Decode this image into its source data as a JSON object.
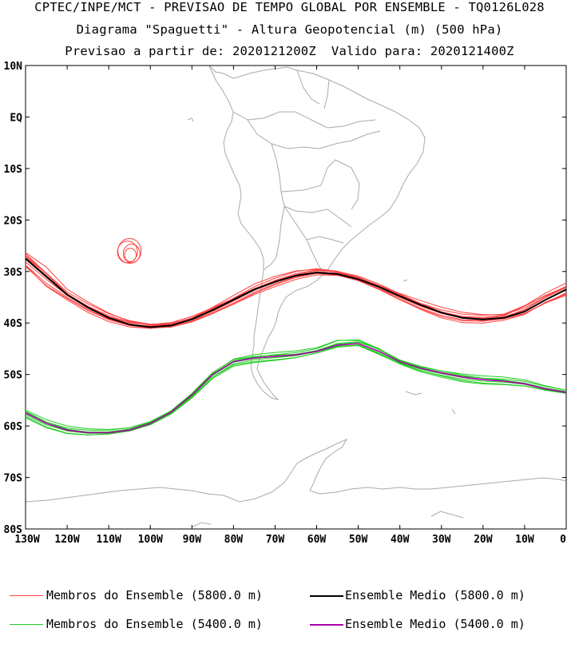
{
  "titles": {
    "line1": "CPTEC/INPE/MCT - PREVISAO DE TEMPO GLOBAL POR ENSEMBLE - TQ0126L028",
    "line2": "Diagrama \"Spaguetti\" - Altura Geopotencial (m) (500 hPa)",
    "line3": "Previsao a partir de: 2020121200Z  Valido para: 2020121400Z"
  },
  "axes": {
    "lat_labels": [
      "10N",
      "EQ",
      "10S",
      "20S",
      "30S",
      "40S",
      "50S",
      "60S",
      "70S",
      "80S"
    ],
    "lat_values": [
      10,
      0,
      -10,
      -20,
      -30,
      -40,
      -50,
      -60,
      -70,
      -80
    ],
    "lon_labels": [
      "130W",
      "120W",
      "110W",
      "100W",
      "90W",
      "80W",
      "70W",
      "60W",
      "50W",
      "40W",
      "30W",
      "20W",
      "10W",
      "0"
    ],
    "lon_values": [
      -130,
      -120,
      -110,
      -100,
      -90,
      -80,
      -70,
      -60,
      -50,
      -40,
      -30,
      -20,
      -10,
      0
    ],
    "lon_range": [
      -130,
      0
    ],
    "lat_range": [
      -80,
      10
    ]
  },
  "legend": {
    "members_5800": "Membros do Ensemble (5800.0 m)",
    "mean_5800": "Ensemble Medio (5800.0 m)",
    "members_5400": "Membros do Ensemble (5400.0 m)",
    "mean_5400": "Ensemble Medio (5400.0 m)"
  },
  "colors": {
    "members_5800": "#ff4040",
    "mean_5800": "#000000",
    "members_5400": "#22cc22",
    "mean_5400": "#aa00aa",
    "coast": "#aaaaaa"
  },
  "contours": {
    "mean_5800": [
      [
        -130,
        -27.5
      ],
      [
        -125,
        -31
      ],
      [
        -120,
        -34.5
      ],
      [
        -115,
        -37
      ],
      [
        -110,
        -39
      ],
      [
        -105,
        -40.3
      ],
      [
        -100,
        -40.8
      ],
      [
        -95,
        -40.5
      ],
      [
        -90,
        -39.3
      ],
      [
        -85,
        -37.5
      ],
      [
        -80,
        -35.5
      ],
      [
        -75,
        -33.5
      ],
      [
        -70,
        -32
      ],
      [
        -65,
        -30.8
      ],
      [
        -60,
        -30.2
      ],
      [
        -55,
        -30.5
      ],
      [
        -50,
        -31.5
      ],
      [
        -45,
        -33
      ],
      [
        -40,
        -34.8
      ],
      [
        -35,
        -36.5
      ],
      [
        -30,
        -38
      ],
      [
        -25,
        -39
      ],
      [
        -20,
        -39.3
      ],
      [
        -15,
        -39
      ],
      [
        -10,
        -37.8
      ],
      [
        -5,
        -35.5
      ],
      [
        0,
        -33.5
      ]
    ],
    "mean_5400": [
      [
        -130,
        -57.5
      ],
      [
        -125,
        -59.5
      ],
      [
        -120,
        -60.8
      ],
      [
        -115,
        -61.3
      ],
      [
        -110,
        -61.3
      ],
      [
        -105,
        -60.8
      ],
      [
        -100,
        -59.5
      ],
      [
        -95,
        -57.3
      ],
      [
        -90,
        -54
      ],
      [
        -85,
        -50
      ],
      [
        -80,
        -47.5
      ],
      [
        -75,
        -46.8
      ],
      [
        -70,
        -46.5
      ],
      [
        -65,
        -46.2
      ],
      [
        -60,
        -45.5
      ],
      [
        -55,
        -44.3
      ],
      [
        -50,
        -44
      ],
      [
        -45,
        -45.5
      ],
      [
        -40,
        -47.5
      ],
      [
        -35,
        -48.8
      ],
      [
        -30,
        -49.7
      ],
      [
        -25,
        -50.5
      ],
      [
        -20,
        -51
      ],
      [
        -15,
        -51.3
      ],
      [
        -10,
        -51.8
      ],
      [
        -5,
        -52.8
      ],
      [
        0,
        -53.5
      ]
    ],
    "member_offsets_5800": [
      -1.0,
      -0.6,
      -0.3,
      0.2,
      0.5,
      0.8,
      1.1,
      -0.8,
      0.3,
      0.6
    ],
    "member_offsets_5400": [
      -0.9,
      -0.5,
      -0.2,
      0.2,
      0.5,
      0.8,
      -0.7,
      0.4
    ],
    "closed_lows_5800": [
      [
        -105,
        -26,
        2.8,
        2.4
      ],
      [
        -104.5,
        -26.5,
        2.0,
        1.8
      ],
      [
        -105.5,
        -26.2,
        2.4,
        2.1
      ],
      [
        -104.8,
        -26.8,
        1.4,
        1.3
      ]
    ]
  }
}
